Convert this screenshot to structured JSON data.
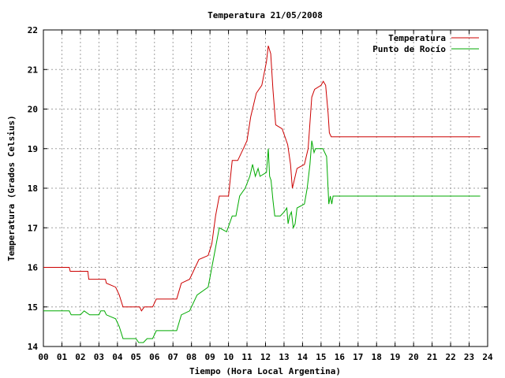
{
  "chart_data": {
    "type": "line",
    "title": "Temperatura 21/05/2008",
    "xlabel": "Tiempo (Hora Local Argentina)",
    "ylabel": "Temperatura (Grados Celsius)",
    "xlim": [
      0,
      24
    ],
    "ylim": [
      14,
      22
    ],
    "x_ticks": [
      "00",
      "01",
      "02",
      "03",
      "04",
      "05",
      "06",
      "07",
      "08",
      "09",
      "10",
      "11",
      "12",
      "13",
      "14",
      "15",
      "16",
      "17",
      "18",
      "19",
      "20",
      "21",
      "22",
      "23",
      "24"
    ],
    "y_ticks": [
      "14",
      "15",
      "16",
      "17",
      "18",
      "19",
      "20",
      "21",
      "22"
    ],
    "grid": true,
    "legend_position": "top-right",
    "series": [
      {
        "name": "Temperatura",
        "color": "#cc0000",
        "points": [
          [
            0,
            16.0
          ],
          [
            1.4,
            16.0
          ],
          [
            1.45,
            15.9
          ],
          [
            2.4,
            15.9
          ],
          [
            2.45,
            15.7
          ],
          [
            3.35,
            15.7
          ],
          [
            3.4,
            15.6
          ],
          [
            3.9,
            15.5
          ],
          [
            4.1,
            15.3
          ],
          [
            4.3,
            15.0
          ],
          [
            5.2,
            15.0
          ],
          [
            5.3,
            14.9
          ],
          [
            5.45,
            15.0
          ],
          [
            5.9,
            15.0
          ],
          [
            6.1,
            15.2
          ],
          [
            7.2,
            15.2
          ],
          [
            7.45,
            15.6
          ],
          [
            7.9,
            15.7
          ],
          [
            8.4,
            16.2
          ],
          [
            8.9,
            16.3
          ],
          [
            9.1,
            16.6
          ],
          [
            9.3,
            17.3
          ],
          [
            9.5,
            17.8
          ],
          [
            10.0,
            17.8
          ],
          [
            10.2,
            18.7
          ],
          [
            10.5,
            18.7
          ],
          [
            10.8,
            19.0
          ],
          [
            11.0,
            19.2
          ],
          [
            11.2,
            19.8
          ],
          [
            11.5,
            20.4
          ],
          [
            11.8,
            20.6
          ],
          [
            12.05,
            21.2
          ],
          [
            12.15,
            21.6
          ],
          [
            12.28,
            21.4
          ],
          [
            12.4,
            20.5
          ],
          [
            12.55,
            19.6
          ],
          [
            12.9,
            19.5
          ],
          [
            13.2,
            19.1
          ],
          [
            13.35,
            18.6
          ],
          [
            13.45,
            18.0
          ],
          [
            13.55,
            18.2
          ],
          [
            13.7,
            18.5
          ],
          [
            14.1,
            18.6
          ],
          [
            14.3,
            19.0
          ],
          [
            14.5,
            20.3
          ],
          [
            14.65,
            20.5
          ],
          [
            15.0,
            20.6
          ],
          [
            15.12,
            20.7
          ],
          [
            15.25,
            20.6
          ],
          [
            15.38,
            19.9
          ],
          [
            15.45,
            19.4
          ],
          [
            15.55,
            19.3
          ],
          [
            23.6,
            19.3
          ]
        ]
      },
      {
        "name": "Punto de Rocío",
        "color": "#00aa00",
        "points": [
          [
            0,
            14.9
          ],
          [
            1.4,
            14.9
          ],
          [
            1.5,
            14.8
          ],
          [
            2.0,
            14.8
          ],
          [
            2.2,
            14.9
          ],
          [
            2.5,
            14.8
          ],
          [
            3.0,
            14.8
          ],
          [
            3.1,
            14.9
          ],
          [
            3.3,
            14.9
          ],
          [
            3.4,
            14.8
          ],
          [
            3.9,
            14.7
          ],
          [
            4.1,
            14.5
          ],
          [
            4.3,
            14.2
          ],
          [
            5.0,
            14.2
          ],
          [
            5.15,
            14.1
          ],
          [
            5.4,
            14.1
          ],
          [
            5.6,
            14.2
          ],
          [
            5.9,
            14.2
          ],
          [
            6.1,
            14.4
          ],
          [
            7.2,
            14.4
          ],
          [
            7.45,
            14.8
          ],
          [
            7.9,
            14.9
          ],
          [
            8.3,
            15.3
          ],
          [
            8.9,
            15.5
          ],
          [
            9.1,
            16.0
          ],
          [
            9.3,
            16.5
          ],
          [
            9.5,
            17.0
          ],
          [
            9.9,
            16.9
          ],
          [
            10.2,
            17.3
          ],
          [
            10.4,
            17.3
          ],
          [
            10.6,
            17.8
          ],
          [
            10.9,
            18.0
          ],
          [
            11.15,
            18.3
          ],
          [
            11.3,
            18.6
          ],
          [
            11.45,
            18.3
          ],
          [
            11.6,
            18.5
          ],
          [
            11.7,
            18.3
          ],
          [
            12.05,
            18.4
          ],
          [
            12.15,
            19.0
          ],
          [
            12.22,
            18.3
          ],
          [
            12.3,
            18.2
          ],
          [
            12.4,
            17.7
          ],
          [
            12.5,
            17.3
          ],
          [
            12.8,
            17.3
          ],
          [
            13.0,
            17.4
          ],
          [
            13.15,
            17.5
          ],
          [
            13.22,
            17.1
          ],
          [
            13.3,
            17.3
          ],
          [
            13.4,
            17.4
          ],
          [
            13.5,
            17.0
          ],
          [
            13.6,
            17.1
          ],
          [
            13.7,
            17.5
          ],
          [
            14.1,
            17.6
          ],
          [
            14.25,
            18.0
          ],
          [
            14.4,
            18.6
          ],
          [
            14.5,
            19.2
          ],
          [
            14.62,
            18.9
          ],
          [
            14.7,
            19.0
          ],
          [
            15.1,
            19.0
          ],
          [
            15.3,
            18.8
          ],
          [
            15.42,
            17.6
          ],
          [
            15.5,
            17.8
          ],
          [
            15.58,
            17.6
          ],
          [
            15.65,
            17.8
          ],
          [
            23.6,
            17.8
          ]
        ]
      }
    ]
  }
}
